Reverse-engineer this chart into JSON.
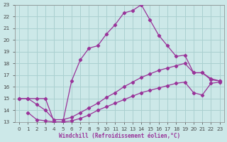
{
  "xlabel": "Windchill (Refroidissement éolien,°C)",
  "bg_color": "#cce8e8",
  "grid_color": "#aad0d0",
  "line_color": "#993399",
  "xlim": [
    -0.5,
    23.5
  ],
  "ylim": [
    13,
    23
  ],
  "xticks": [
    0,
    1,
    2,
    3,
    4,
    5,
    6,
    7,
    8,
    9,
    10,
    11,
    12,
    13,
    14,
    15,
    16,
    17,
    18,
    19,
    20,
    21,
    22,
    23
  ],
  "yticks": [
    13,
    14,
    15,
    16,
    17,
    18,
    19,
    20,
    21,
    22,
    23
  ],
  "series1_x": [
    0,
    1,
    2,
    3,
    4,
    5,
    6,
    7,
    8,
    9,
    10,
    11,
    12,
    13,
    14,
    15,
    16,
    17,
    18,
    19,
    20,
    21,
    22,
    23
  ],
  "series1_y": [
    15,
    15,
    15,
    15,
    13,
    13,
    16.5,
    18.3,
    19.3,
    19.5,
    20.5,
    21.3,
    22.3,
    22.5,
    23.0,
    21.7,
    20.4,
    19.5,
    18.6,
    18.7,
    17.2,
    17.2,
    16.6,
    16.5
  ],
  "series2_x": [
    0,
    1,
    2,
    3,
    4,
    5,
    6,
    7,
    8,
    9,
    10,
    11,
    12,
    13,
    14,
    15,
    16,
    17,
    18,
    19,
    20,
    21,
    22,
    23
  ],
  "series2_y": [
    15,
    15,
    14.5,
    14.0,
    13.2,
    13.2,
    13.4,
    13.8,
    14.2,
    14.6,
    15.1,
    15.5,
    16.0,
    16.4,
    16.8,
    17.1,
    17.4,
    17.6,
    17.8,
    18.0,
    17.2,
    17.2,
    16.7,
    16.5
  ],
  "series3_x": [
    1,
    2,
    3,
    4,
    5,
    6,
    7,
    8,
    9,
    10,
    11,
    12,
    13,
    14,
    15,
    16,
    17,
    18,
    19,
    20,
    21,
    22,
    23
  ],
  "series3_y": [
    13.8,
    13.2,
    13.1,
    13.0,
    13.0,
    13.1,
    13.3,
    13.6,
    14.0,
    14.3,
    14.6,
    14.9,
    15.2,
    15.5,
    15.7,
    15.9,
    16.1,
    16.3,
    16.4,
    15.5,
    15.3,
    16.3,
    16.4
  ]
}
